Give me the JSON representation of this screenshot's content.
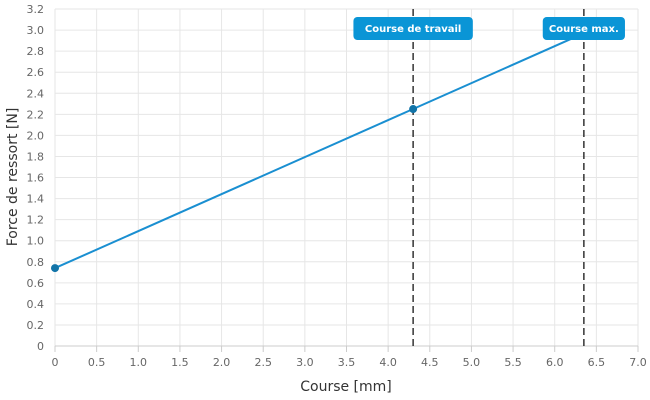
{
  "chart_data": {
    "type": "line",
    "title": "",
    "xlabel": "Course [mm]",
    "ylabel": "Force de ressort [N]",
    "xlim": [
      0,
      7.0
    ],
    "ylim": [
      0,
      3.2
    ],
    "grid": true,
    "x_ticks": [
      "0",
      "0.5",
      "1.0",
      "1.5",
      "2.0",
      "2.5",
      "3.0",
      "3.5",
      "4.0",
      "4.5",
      "5.0",
      "5.5",
      "6.0",
      "6.5",
      "7.0"
    ],
    "y_ticks": [
      "0",
      "0.2",
      "0.4",
      "0.6",
      "0.8",
      "1.0",
      "1.2",
      "1.4",
      "1.6",
      "1.8",
      "2.0",
      "2.2",
      "2.4",
      "2.6",
      "2.8",
      "3.0",
      "3.2"
    ],
    "series": [
      {
        "color": "#1a8fd1",
        "x": [
          0,
          4.3,
          6.35
        ],
        "y": [
          0.74,
          2.25,
          2.97
        ],
        "markers": [
          true,
          true,
          false
        ]
      }
    ],
    "annotations": [
      {
        "x": 4.3,
        "label": "Course de travail"
      },
      {
        "x": 6.35,
        "label": "Course max."
      }
    ],
    "colors": {
      "line": "#1a8fd1",
      "marker": "#1274a8",
      "annotation_bg": "#0a95d6",
      "guide": "#333333"
    }
  }
}
